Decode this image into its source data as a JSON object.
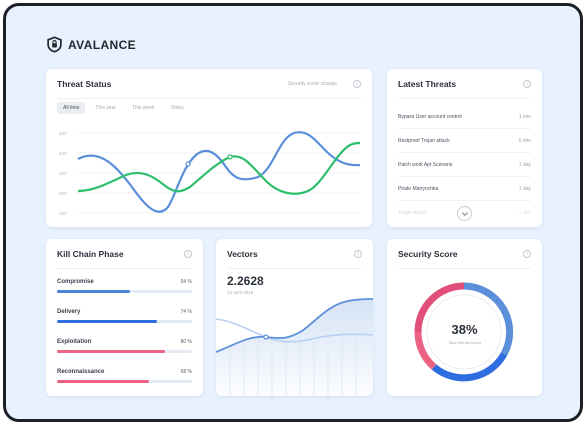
{
  "brand": {
    "name": "AVALANCE",
    "logo_icon": "shield-logo-icon"
  },
  "threat_status": {
    "title": "Threat Status",
    "link": "Security score change",
    "tabs": [
      {
        "label": "All time",
        "active": true
      },
      {
        "label": "This year",
        "active": false
      },
      {
        "label": "This week",
        "active": false
      },
      {
        "label": "Today",
        "active": false
      }
    ],
    "y_ticks": [
      "500",
      "400",
      "300",
      "200",
      "100"
    ],
    "colors": {
      "series_a": "#5b8fd9",
      "series_b": "#2dbf6e"
    }
  },
  "latest_threats": {
    "title": "Latest Threats",
    "items": [
      {
        "name": "Bypass User account control",
        "time": "1 min"
      },
      {
        "name": "Restproof Trojan attack",
        "time": "5 min"
      },
      {
        "name": "Patch work Apt Scenario",
        "time": "1 day"
      },
      {
        "name": "Pirate Matryochka",
        "time": "1 day"
      },
      {
        "name": "Trojan Attack",
        "time": "1 day"
      }
    ],
    "scroll_icon": "chevron-down-icon"
  },
  "kill_chain": {
    "title": "Kill Chain Phase",
    "items": [
      {
        "label": "Compromise",
        "pct": "54 %",
        "value": 0.54,
        "color": "#4a84d6"
      },
      {
        "label": "Delivery",
        "pct": "74 %",
        "value": 0.74,
        "color": "#2f6ee0"
      },
      {
        "label": "Exploitation",
        "pct": "80 %",
        "value": 0.8,
        "color": "#ec6283"
      },
      {
        "label": "Reconnaissance",
        "pct": "68 %",
        "value": 0.68,
        "color": "#ec5f82"
      }
    ]
  },
  "vectors": {
    "title": "Vectors",
    "value": "2.2628",
    "date": "23 April 2018",
    "colors": {
      "line": "#5b8fd9",
      "line_faint": "#b9d0f0"
    }
  },
  "security_score": {
    "title": "Security Score",
    "value": "38%",
    "subtitle": "Total threats found",
    "colors": {
      "a": "#5b8fd9",
      "b": "#2f6ee0",
      "c": "#ec6283",
      "d": "#e14f7a"
    }
  }
}
